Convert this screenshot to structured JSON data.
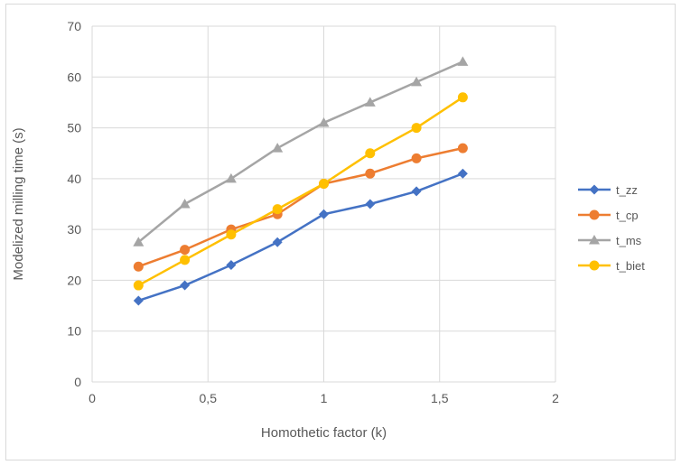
{
  "chart_data": {
    "type": "line",
    "title": "",
    "xlabel": "Homothetic factor (k)",
    "ylabel": "Modelized milling time (s)",
    "xlim": [
      0,
      2
    ],
    "ylim": [
      0,
      70
    ],
    "x_ticks": [
      0,
      0.5,
      1,
      1.5,
      2
    ],
    "x_tick_labels": [
      "0",
      "0,5",
      "1",
      "1,5",
      "2"
    ],
    "y_ticks": [
      0,
      10,
      20,
      30,
      40,
      50,
      60,
      70
    ],
    "y_tick_labels": [
      "0",
      "10",
      "20",
      "30",
      "40",
      "50",
      "60",
      "70"
    ],
    "grid": "vertical-and-horizontal",
    "legend_position": "right",
    "series": [
      {
        "name": "t_zz",
        "color": "#4472c4",
        "marker": "diamond",
        "x": [
          0.2,
          0.4,
          0.6,
          0.8,
          1.0,
          1.2,
          1.4,
          1.6
        ],
        "y": [
          16,
          19,
          23,
          27.5,
          33,
          35,
          37.5,
          41
        ]
      },
      {
        "name": "t_cp",
        "color": "#ed7d31",
        "marker": "circle",
        "x": [
          0.2,
          0.4,
          0.6,
          0.8,
          1.0,
          1.2,
          1.4,
          1.6
        ],
        "y": [
          22.7,
          26,
          30,
          33,
          39,
          41,
          44,
          46
        ]
      },
      {
        "name": "t_ms",
        "color": "#a5a5a5",
        "marker": "triangle",
        "x": [
          0.2,
          0.4,
          0.6,
          0.8,
          1.0,
          1.2,
          1.4,
          1.6
        ],
        "y": [
          27.5,
          35,
          40,
          46,
          51,
          55,
          59,
          63
        ]
      },
      {
        "name": "t_biet",
        "color": "#ffc000",
        "marker": "circle",
        "x": [
          0.2,
          0.4,
          0.6,
          0.8,
          1.0,
          1.2,
          1.4,
          1.6
        ],
        "y": [
          19,
          24,
          29,
          34,
          39,
          45,
          50,
          56
        ]
      }
    ]
  }
}
